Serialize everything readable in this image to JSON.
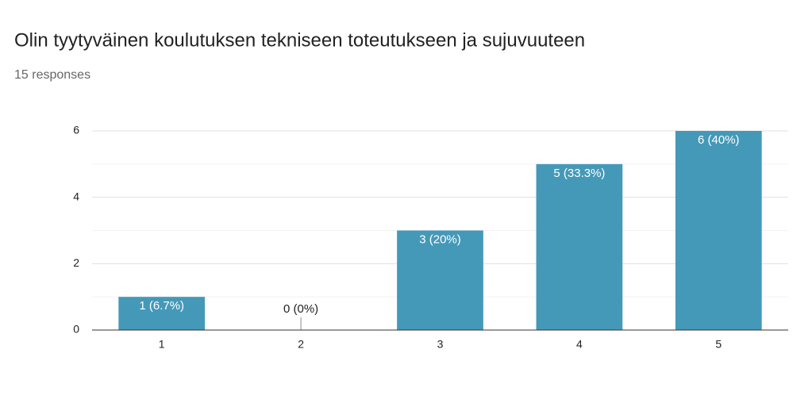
{
  "chart_data": {
    "type": "bar",
    "title": "Olin tyytyväinen koulutuksen tekniseen toteutukseen ja sujuvuuteen",
    "subtitle": "15 responses",
    "categories": [
      "1",
      "2",
      "3",
      "4",
      "5"
    ],
    "values": [
      1,
      0,
      3,
      5,
      6
    ],
    "value_labels": [
      "1 (6.7%)",
      "0 (0%)",
      "3 (20%)",
      "5 (33.3%)",
      "6 (40%)"
    ],
    "color": "#4599b8",
    "ylim": [
      0,
      6
    ],
    "yticks": [
      0,
      2,
      4,
      6
    ],
    "yminorticks": [
      1,
      3,
      5
    ],
    "grid": true
  }
}
